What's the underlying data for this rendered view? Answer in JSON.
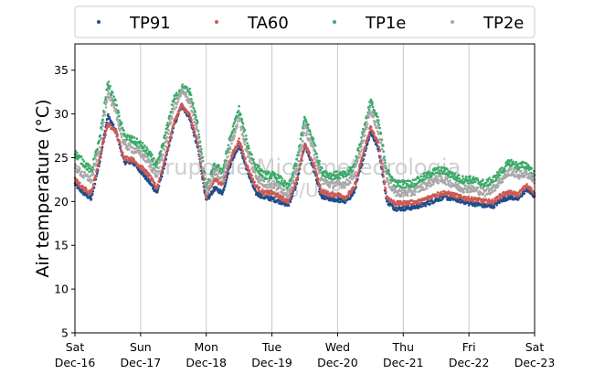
{
  "chart_data": {
    "type": "scatter",
    "title": "",
    "xlabel": "",
    "ylabel": "Air temperature (°C)",
    "ylim": [
      5,
      38
    ],
    "yticks": [
      5,
      10,
      15,
      20,
      25,
      30,
      35
    ],
    "xlim": [
      "2023-12-16T00:00",
      "2023-12-23T00:00"
    ],
    "xticks": [
      {
        "day": "Sat",
        "date": "Dec-16"
      },
      {
        "day": "Sun",
        "date": "Dec-17"
      },
      {
        "day": "Mon",
        "date": "Dec-18"
      },
      {
        "day": "Tue",
        "date": "Dec-19"
      },
      {
        "day": "Wed",
        "date": "Dec-20"
      },
      {
        "day": "Thu",
        "date": "Dec-21"
      },
      {
        "day": "Fri",
        "date": "Dec-22"
      },
      {
        "day": "Sat",
        "date": "Dec-23"
      }
    ],
    "grid": "x-vertical",
    "legend_position": "top",
    "watermark": [
      "Grupo de Micrometeorologia",
      "IAG/USP"
    ],
    "series": [
      {
        "name": "TP91",
        "color": "#1f4e8c",
        "values": [
          [
            "2023-12-16T00:00",
            22.0
          ],
          [
            "2023-12-16T03:00",
            21.0
          ],
          [
            "2023-12-16T06:00",
            20.3
          ],
          [
            "2023-12-16T09:00",
            24.5
          ],
          [
            "2023-12-16T12:00",
            29.8
          ],
          [
            "2023-12-16T15:00",
            28.0
          ],
          [
            "2023-12-16T18:00",
            24.5
          ],
          [
            "2023-12-16T21:00",
            24.5
          ],
          [
            "2023-12-17T00:00",
            23.5
          ],
          [
            "2023-12-17T03:00",
            22.3
          ],
          [
            "2023-12-17T06:00",
            21.0
          ],
          [
            "2023-12-17T09:00",
            24.5
          ],
          [
            "2023-12-17T12:00",
            28.5
          ],
          [
            "2023-12-17T15:00",
            31.0
          ],
          [
            "2023-12-17T18:00",
            29.5
          ],
          [
            "2023-12-17T21:00",
            26.0
          ],
          [
            "2023-12-18T00:00",
            20.0
          ],
          [
            "2023-12-18T03:00",
            21.5
          ],
          [
            "2023-12-18T06:00",
            21.0
          ],
          [
            "2023-12-18T09:00",
            24.5
          ],
          [
            "2023-12-18T12:00",
            26.5
          ],
          [
            "2023-12-18T15:00",
            23.5
          ],
          [
            "2023-12-18T18:00",
            21.0
          ],
          [
            "2023-12-18T21:00",
            20.5
          ],
          [
            "2023-12-19T00:00",
            20.3
          ],
          [
            "2023-12-19T03:00",
            20.0
          ],
          [
            "2023-12-19T06:00",
            19.6
          ],
          [
            "2023-12-19T09:00",
            22.0
          ],
          [
            "2023-12-19T12:00",
            26.5
          ],
          [
            "2023-12-19T15:00",
            24.0
          ],
          [
            "2023-12-19T18:00",
            20.5
          ],
          [
            "2023-12-19T21:00",
            20.3
          ],
          [
            "2023-12-20T00:00",
            20.2
          ],
          [
            "2023-12-20T03:00",
            20.0
          ],
          [
            "2023-12-20T06:00",
            21.0
          ],
          [
            "2023-12-20T09:00",
            24.5
          ],
          [
            "2023-12-20T12:00",
            28.0
          ],
          [
            "2023-12-20T15:00",
            26.0
          ],
          [
            "2023-12-20T18:00",
            20.0
          ],
          [
            "2023-12-20T21:00",
            19.2
          ],
          [
            "2023-12-21T00:00",
            19.2
          ],
          [
            "2023-12-21T03:00",
            19.3
          ],
          [
            "2023-12-21T06:00",
            19.5
          ],
          [
            "2023-12-21T09:00",
            19.8
          ],
          [
            "2023-12-21T12:00",
            20.2
          ],
          [
            "2023-12-21T15:00",
            20.5
          ],
          [
            "2023-12-21T18:00",
            20.3
          ],
          [
            "2023-12-21T21:00",
            20.1
          ],
          [
            "2023-12-22T00:00",
            19.8
          ],
          [
            "2023-12-22T03:00",
            19.7
          ],
          [
            "2023-12-22T06:00",
            19.5
          ],
          [
            "2023-12-22T09:00",
            19.5
          ],
          [
            "2023-12-22T12:00",
            20.2
          ],
          [
            "2023-12-22T15:00",
            20.5
          ],
          [
            "2023-12-22T18:00",
            20.3
          ],
          [
            "2023-12-22T21:00",
            21.4
          ],
          [
            "2023-12-23T00:00",
            20.6
          ]
        ]
      },
      {
        "name": "TA60",
        "color": "#cc5a55",
        "values": [
          [
            "2023-12-16T00:00",
            22.5
          ],
          [
            "2023-12-16T03:00",
            21.5
          ],
          [
            "2023-12-16T06:00",
            21.0
          ],
          [
            "2023-12-16T09:00",
            25.0
          ],
          [
            "2023-12-16T12:00",
            28.8
          ],
          [
            "2023-12-16T15:00",
            28.0
          ],
          [
            "2023-12-16T18:00",
            25.0
          ],
          [
            "2023-12-16T21:00",
            24.8
          ],
          [
            "2023-12-17T00:00",
            24.0
          ],
          [
            "2023-12-17T03:00",
            23.0
          ],
          [
            "2023-12-17T06:00",
            21.5
          ],
          [
            "2023-12-17T09:00",
            25.0
          ],
          [
            "2023-12-17T12:00",
            28.8
          ],
          [
            "2023-12-17T15:00",
            31.0
          ],
          [
            "2023-12-17T18:00",
            29.8
          ],
          [
            "2023-12-17T21:00",
            26.5
          ],
          [
            "2023-12-18T00:00",
            20.5
          ],
          [
            "2023-12-18T03:00",
            22.5
          ],
          [
            "2023-12-18T06:00",
            22.0
          ],
          [
            "2023-12-18T09:00",
            25.0
          ],
          [
            "2023-12-18T12:00",
            27.0
          ],
          [
            "2023-12-18T15:00",
            24.0
          ],
          [
            "2023-12-18T18:00",
            21.8
          ],
          [
            "2023-12-18T21:00",
            21.0
          ],
          [
            "2023-12-19T00:00",
            21.0
          ],
          [
            "2023-12-19T03:00",
            20.5
          ],
          [
            "2023-12-19T06:00",
            20.0
          ],
          [
            "2023-12-19T09:00",
            22.5
          ],
          [
            "2023-12-19T12:00",
            26.5
          ],
          [
            "2023-12-19T15:00",
            24.5
          ],
          [
            "2023-12-19T18:00",
            21.2
          ],
          [
            "2023-12-19T21:00",
            20.8
          ],
          [
            "2023-12-20T00:00",
            20.8
          ],
          [
            "2023-12-20T03:00",
            20.5
          ],
          [
            "2023-12-20T06:00",
            21.5
          ],
          [
            "2023-12-20T09:00",
            25.0
          ],
          [
            "2023-12-20T12:00",
            28.5
          ],
          [
            "2023-12-20T15:00",
            26.5
          ],
          [
            "2023-12-20T18:00",
            20.5
          ],
          [
            "2023-12-20T21:00",
            19.8
          ],
          [
            "2023-12-21T00:00",
            19.8
          ],
          [
            "2023-12-21T03:00",
            19.9
          ],
          [
            "2023-12-21T06:00",
            20.0
          ],
          [
            "2023-12-21T09:00",
            20.4
          ],
          [
            "2023-12-21T12:00",
            20.8
          ],
          [
            "2023-12-21T15:00",
            21.0
          ],
          [
            "2023-12-21T18:00",
            20.8
          ],
          [
            "2023-12-21T21:00",
            20.5
          ],
          [
            "2023-12-22T00:00",
            20.3
          ],
          [
            "2023-12-22T03:00",
            20.2
          ],
          [
            "2023-12-22T06:00",
            20.0
          ],
          [
            "2023-12-22T09:00",
            20.0
          ],
          [
            "2023-12-22T12:00",
            20.8
          ],
          [
            "2023-12-22T15:00",
            21.0
          ],
          [
            "2023-12-22T18:00",
            20.8
          ],
          [
            "2023-12-22T21:00",
            21.8
          ],
          [
            "2023-12-23T00:00",
            21.0
          ]
        ]
      },
      {
        "name": "TP1e",
        "color": "#3daa6a",
        "values": [
          [
            "2023-12-16T00:00",
            25.5
          ],
          [
            "2023-12-16T03:00",
            24.5
          ],
          [
            "2023-12-16T06:00",
            23.5
          ],
          [
            "2023-12-16T09:00",
            27.0
          ],
          [
            "2023-12-16T12:00",
            33.5
          ],
          [
            "2023-12-16T15:00",
            31.0
          ],
          [
            "2023-12-16T18:00",
            27.5
          ],
          [
            "2023-12-16T21:00",
            27.0
          ],
          [
            "2023-12-17T00:00",
            26.5
          ],
          [
            "2023-12-17T03:00",
            25.5
          ],
          [
            "2023-12-17T06:00",
            24.0
          ],
          [
            "2023-12-17T09:00",
            27.5
          ],
          [
            "2023-12-17T12:00",
            31.5
          ],
          [
            "2023-12-17T15:00",
            33.0
          ],
          [
            "2023-12-17T18:00",
            32.5
          ],
          [
            "2023-12-17T21:00",
            28.5
          ],
          [
            "2023-12-18T00:00",
            21.5
          ],
          [
            "2023-12-18T03:00",
            24.0
          ],
          [
            "2023-12-18T06:00",
            23.5
          ],
          [
            "2023-12-18T09:00",
            27.5
          ],
          [
            "2023-12-18T12:00",
            30.5
          ],
          [
            "2023-12-18T15:00",
            26.5
          ],
          [
            "2023-12-18T18:00",
            24.0
          ],
          [
            "2023-12-18T21:00",
            23.0
          ],
          [
            "2023-12-19T00:00",
            23.0
          ],
          [
            "2023-12-19T03:00",
            22.5
          ],
          [
            "2023-12-19T06:00",
            21.5
          ],
          [
            "2023-12-19T09:00",
            24.5
          ],
          [
            "2023-12-19T12:00",
            29.5
          ],
          [
            "2023-12-19T15:00",
            27.0
          ],
          [
            "2023-12-19T18:00",
            23.5
          ],
          [
            "2023-12-19T21:00",
            23.0
          ],
          [
            "2023-12-20T00:00",
            23.0
          ],
          [
            "2023-12-20T03:00",
            23.0
          ],
          [
            "2023-12-20T06:00",
            24.0
          ],
          [
            "2023-12-20T09:00",
            27.5
          ],
          [
            "2023-12-20T12:00",
            31.5
          ],
          [
            "2023-12-20T15:00",
            29.0
          ],
          [
            "2023-12-20T18:00",
            23.5
          ],
          [
            "2023-12-20T21:00",
            22.0
          ],
          [
            "2023-12-21T00:00",
            22.0
          ],
          [
            "2023-12-21T03:00",
            22.0
          ],
          [
            "2023-12-21T06:00",
            22.5
          ],
          [
            "2023-12-21T09:00",
            23.0
          ],
          [
            "2023-12-21T12:00",
            23.5
          ],
          [
            "2023-12-21T15:00",
            23.5
          ],
          [
            "2023-12-21T18:00",
            23.0
          ],
          [
            "2023-12-21T21:00",
            22.5
          ],
          [
            "2023-12-22T00:00",
            22.5
          ],
          [
            "2023-12-22T03:00",
            22.3
          ],
          [
            "2023-12-22T06:00",
            22.0
          ],
          [
            "2023-12-22T09:00",
            22.5
          ],
          [
            "2023-12-22T12:00",
            23.5
          ],
          [
            "2023-12-22T15:00",
            24.5
          ],
          [
            "2023-12-22T18:00",
            24.0
          ],
          [
            "2023-12-22T21:00",
            24.2
          ],
          [
            "2023-12-23T00:00",
            23.0
          ]
        ]
      },
      {
        "name": "TP2e",
        "color": "#a8a8a8",
        "values": [
          [
            "2023-12-16T00:00",
            24.0
          ],
          [
            "2023-12-16T03:00",
            23.0
          ],
          [
            "2023-12-16T06:00",
            22.5
          ],
          [
            "2023-12-16T09:00",
            26.0
          ],
          [
            "2023-12-16T12:00",
            32.5
          ],
          [
            "2023-12-16T15:00",
            30.0
          ],
          [
            "2023-12-16T18:00",
            26.5
          ],
          [
            "2023-12-16T21:00",
            26.0
          ],
          [
            "2023-12-17T00:00",
            25.5
          ],
          [
            "2023-12-17T03:00",
            24.5
          ],
          [
            "2023-12-17T06:00",
            23.0
          ],
          [
            "2023-12-17T09:00",
            26.5
          ],
          [
            "2023-12-17T12:00",
            30.5
          ],
          [
            "2023-12-17T15:00",
            32.5
          ],
          [
            "2023-12-17T18:00",
            31.5
          ],
          [
            "2023-12-17T21:00",
            27.5
          ],
          [
            "2023-12-18T00:00",
            21.0
          ],
          [
            "2023-12-18T03:00",
            23.5
          ],
          [
            "2023-12-18T06:00",
            22.5
          ],
          [
            "2023-12-18T09:00",
            26.5
          ],
          [
            "2023-12-18T12:00",
            29.5
          ],
          [
            "2023-12-18T15:00",
            25.5
          ],
          [
            "2023-12-18T18:00",
            23.0
          ],
          [
            "2023-12-18T21:00",
            22.0
          ],
          [
            "2023-12-19T00:00",
            22.0
          ],
          [
            "2023-12-19T03:00",
            21.5
          ],
          [
            "2023-12-19T06:00",
            20.8
          ],
          [
            "2023-12-19T09:00",
            23.5
          ],
          [
            "2023-12-19T12:00",
            28.5
          ],
          [
            "2023-12-19T15:00",
            26.0
          ],
          [
            "2023-12-19T18:00",
            22.5
          ],
          [
            "2023-12-19T21:00",
            22.0
          ],
          [
            "2023-12-20T00:00",
            22.0
          ],
          [
            "2023-12-20T03:00",
            22.0
          ],
          [
            "2023-12-20T06:00",
            23.0
          ],
          [
            "2023-12-20T09:00",
            26.5
          ],
          [
            "2023-12-20T12:00",
            30.5
          ],
          [
            "2023-12-20T15:00",
            28.0
          ],
          [
            "2023-12-20T18:00",
            22.5
          ],
          [
            "2023-12-20T21:00",
            21.0
          ],
          [
            "2023-12-21T00:00",
            21.0
          ],
          [
            "2023-12-21T03:00",
            21.0
          ],
          [
            "2023-12-21T06:00",
            21.5
          ],
          [
            "2023-12-21T09:00",
            22.0
          ],
          [
            "2023-12-21T12:00",
            22.5
          ],
          [
            "2023-12-21T15:00",
            22.5
          ],
          [
            "2023-12-21T18:00",
            22.0
          ],
          [
            "2023-12-21T21:00",
            21.5
          ],
          [
            "2023-12-22T00:00",
            21.5
          ],
          [
            "2023-12-22T03:00",
            21.3
          ],
          [
            "2023-12-22T06:00",
            21.0
          ],
          [
            "2023-12-22T09:00",
            21.5
          ],
          [
            "2023-12-22T12:00",
            22.5
          ],
          [
            "2023-12-22T15:00",
            23.5
          ],
          [
            "2023-12-22T18:00",
            23.0
          ],
          [
            "2023-12-22T21:00",
            23.2
          ],
          [
            "2023-12-23T00:00",
            22.5
          ]
        ]
      }
    ]
  }
}
